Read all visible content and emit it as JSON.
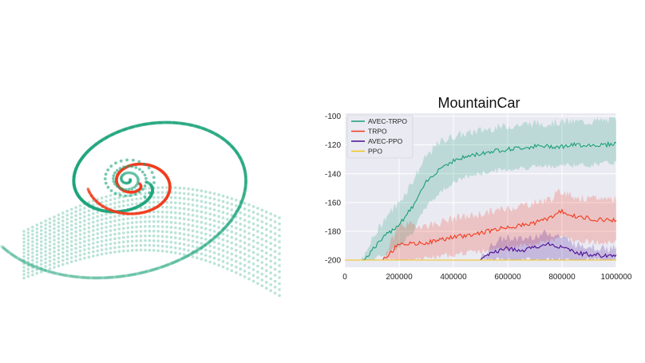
{
  "phase_plot": {
    "outer_color": "#1aa37a",
    "inner_color": "#f03c1f"
  },
  "chart_data": {
    "type": "line",
    "title": "MountainCar",
    "xlabel": "",
    "ylabel": "",
    "xlim": [
      0,
      1000000
    ],
    "ylim": [
      -205,
      -98
    ],
    "xticks": [
      0,
      200000,
      400000,
      600000,
      800000,
      1000000
    ],
    "xtick_labels": [
      "0",
      "200000",
      "400000",
      "600000",
      "800000",
      "1000000"
    ],
    "yticks": [
      -200,
      -180,
      -160,
      -140,
      -120,
      -100
    ],
    "ytick_labels": [
      "-200",
      "-180",
      "-160",
      "-140",
      "-120",
      "-100"
    ],
    "grid": true,
    "background": "#eaeaf2",
    "legend_position": "top-left",
    "series": [
      {
        "name": "AVEC-TRPO",
        "color": "#1b9e77",
        "x": [
          0,
          60000,
          80000,
          100000,
          150000,
          200000,
          250000,
          300000,
          350000,
          400000,
          450000,
          500000,
          550000,
          600000,
          650000,
          700000,
          750000,
          800000,
          850000,
          900000,
          950000,
          1000000
        ],
        "mean": [
          -200,
          -200,
          -198,
          -193,
          -183,
          -175,
          -163,
          -146,
          -136,
          -131,
          -128,
          -126,
          -124,
          -123,
          -122,
          -121,
          -121,
          -121,
          -120,
          -120,
          -120,
          -119
        ],
        "lower": [
          -200,
          -200,
          -200,
          -200,
          -196,
          -190,
          -180,
          -163,
          -153,
          -146,
          -142,
          -140,
          -138,
          -137,
          -136,
          -135,
          -135,
          -134,
          -134,
          -134,
          -133,
          -132
        ],
        "upper": [
          -200,
          -200,
          -195,
          -186,
          -170,
          -160,
          -145,
          -128,
          -118,
          -114,
          -112,
          -110,
          -108,
          -107,
          -106,
          -105,
          -105,
          -104,
          -104,
          -104,
          -103,
          -103
        ]
      },
      {
        "name": "TRPO",
        "color": "#f23b1f",
        "x": [
          0,
          140000,
          160000,
          200000,
          250000,
          300000,
          350000,
          400000,
          450000,
          500000,
          550000,
          600000,
          650000,
          700000,
          750000,
          800000,
          850000,
          900000,
          950000,
          1000000
        ],
        "mean": [
          -200,
          -200,
          -197,
          -188,
          -189,
          -188,
          -186,
          -184,
          -183,
          -181,
          -179,
          -177,
          -176,
          -174,
          -171,
          -166,
          -170,
          -171,
          -172,
          -172
        ],
        "lower": [
          -200,
          -200,
          -200,
          -200,
          -200,
          -199,
          -198,
          -196,
          -195,
          -194,
          -193,
          -192,
          -190,
          -189,
          -187,
          -184,
          -186,
          -187,
          -188,
          -188
        ],
        "upper": [
          -200,
          -200,
          -192,
          -175,
          -176,
          -176,
          -174,
          -171,
          -170,
          -168,
          -166,
          -164,
          -162,
          -160,
          -158,
          -152,
          -156,
          -158,
          -157,
          -157
        ]
      },
      {
        "name": "AVEC-PPO",
        "color": "#4b0c94",
        "x": [
          0,
          500000,
          520000,
          550000,
          600000,
          650000,
          700000,
          750000,
          800000,
          850000,
          900000,
          950000,
          1000000
        ],
        "mean": [
          -200,
          -200,
          -198,
          -194,
          -192,
          -194,
          -191,
          -189,
          -191,
          -195,
          -196,
          -197,
          -197
        ],
        "lower": [
          -200,
          -200,
          -200,
          -200,
          -200,
          -200,
          -200,
          -200,
          -200,
          -200,
          -200,
          -200,
          -200
        ],
        "upper": [
          -200,
          -200,
          -195,
          -188,
          -184,
          -186,
          -183,
          -181,
          -184,
          -189,
          -190,
          -192,
          -192
        ]
      },
      {
        "name": "PPO",
        "color": "#f0c419",
        "x": [
          0,
          1000000
        ],
        "mean": [
          -200,
          -200
        ],
        "lower": [
          -200,
          -200
        ],
        "upper": [
          -200,
          -200
        ]
      }
    ]
  }
}
